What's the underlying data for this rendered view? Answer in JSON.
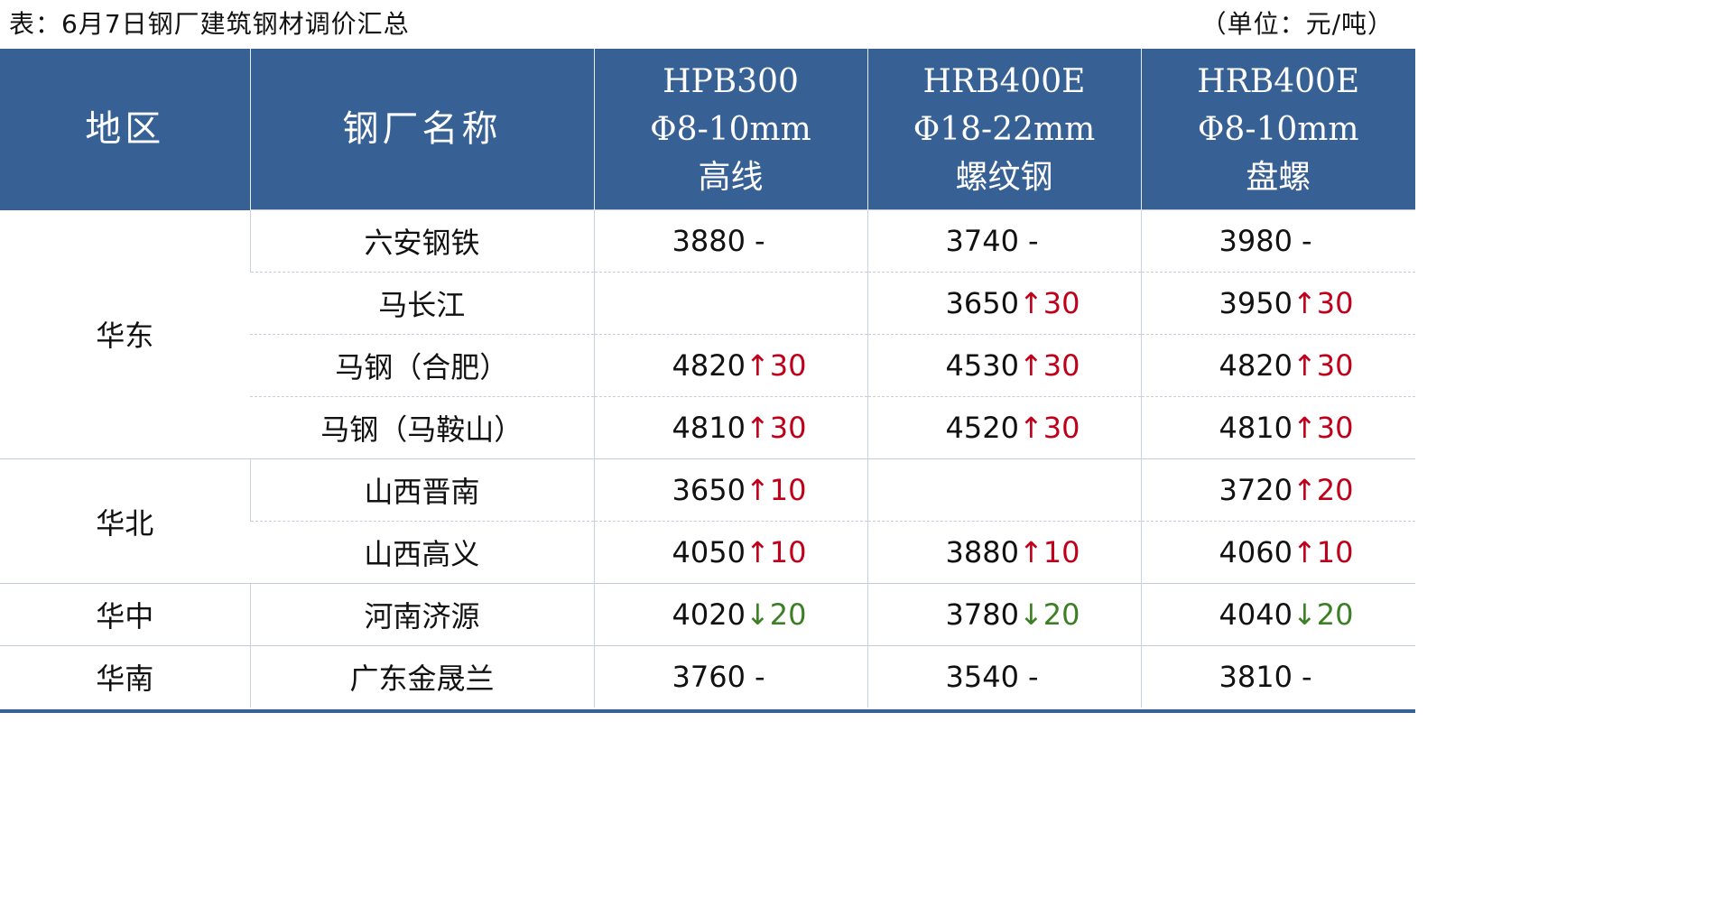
{
  "caption": {
    "title": "表：6月7日钢厂建筑钢材调价汇总",
    "unit": "（单位：元/吨）"
  },
  "header": {
    "region": "地区",
    "mill": "钢厂名称",
    "products": [
      {
        "line1": "HPB300",
        "line2": "Φ8-10mm",
        "line3": "高线"
      },
      {
        "line1": "HRB400E",
        "line2": "Φ18-22mm",
        "line3": "螺纹钢"
      },
      {
        "line1": "HRB400E",
        "line2": "Φ8-10mm",
        "line3": "盘螺"
      }
    ]
  },
  "colors": {
    "header_bg": "#376095",
    "up": "#c0001a",
    "down": "#3d7f25"
  },
  "regions": [
    {
      "name": "华东",
      "rows": [
        {
          "mill": "六安钢铁",
          "prices": [
            {
              "value": "3880",
              "arrow": "",
              "change": "-",
              "dir": "flat"
            },
            {
              "value": "3740",
              "arrow": "",
              "change": "-",
              "dir": "flat"
            },
            {
              "value": "3980",
              "arrow": "",
              "change": "-",
              "dir": "flat"
            }
          ]
        },
        {
          "mill": "马长江",
          "prices": [
            {
              "value": "",
              "arrow": "",
              "change": "",
              "dir": "flat"
            },
            {
              "value": "3650",
              "arrow": "↑",
              "change": "30",
              "dir": "up"
            },
            {
              "value": "3950",
              "arrow": "↑",
              "change": "30",
              "dir": "up"
            }
          ]
        },
        {
          "mill": "马钢（合肥）",
          "prices": [
            {
              "value": "4820",
              "arrow": "↑",
              "change": "30",
              "dir": "up"
            },
            {
              "value": "4530",
              "arrow": "↑",
              "change": "30",
              "dir": "up"
            },
            {
              "value": "4820",
              "arrow": "↑",
              "change": "30",
              "dir": "up"
            }
          ]
        },
        {
          "mill": "马钢（马鞍山）",
          "prices": [
            {
              "value": "4810",
              "arrow": "↑",
              "change": "30",
              "dir": "up"
            },
            {
              "value": "4520",
              "arrow": "↑",
              "change": "30",
              "dir": "up"
            },
            {
              "value": "4810",
              "arrow": "↑",
              "change": "30",
              "dir": "up"
            }
          ]
        }
      ]
    },
    {
      "name": "华北",
      "rows": [
        {
          "mill": "山西晋南",
          "prices": [
            {
              "value": "3650",
              "arrow": "↑",
              "change": "10",
              "dir": "up"
            },
            {
              "value": "",
              "arrow": "",
              "change": "",
              "dir": "flat"
            },
            {
              "value": "3720",
              "arrow": "↑",
              "change": "20",
              "dir": "up"
            }
          ]
        },
        {
          "mill": "山西高义",
          "prices": [
            {
              "value": "4050",
              "arrow": "↑",
              "change": "10",
              "dir": "up"
            },
            {
              "value": "3880",
              "arrow": "↑",
              "change": "10",
              "dir": "up"
            },
            {
              "value": "4060",
              "arrow": "↑",
              "change": "10",
              "dir": "up"
            }
          ]
        }
      ]
    },
    {
      "name": "华中",
      "rows": [
        {
          "mill": "河南济源",
          "prices": [
            {
              "value": "4020",
              "arrow": "↓",
              "change": "20",
              "dir": "down"
            },
            {
              "value": "3780",
              "arrow": "↓",
              "change": "20",
              "dir": "down"
            },
            {
              "value": "4040",
              "arrow": "↓",
              "change": "20",
              "dir": "down"
            }
          ]
        }
      ]
    },
    {
      "name": "华南",
      "rows": [
        {
          "mill": "广东金晟兰",
          "prices": [
            {
              "value": "3760",
              "arrow": "",
              "change": "-",
              "dir": "flat"
            },
            {
              "value": "3540",
              "arrow": "",
              "change": "-",
              "dir": "flat"
            },
            {
              "value": "3810",
              "arrow": "",
              "change": "-",
              "dir": "flat"
            }
          ]
        }
      ]
    }
  ]
}
